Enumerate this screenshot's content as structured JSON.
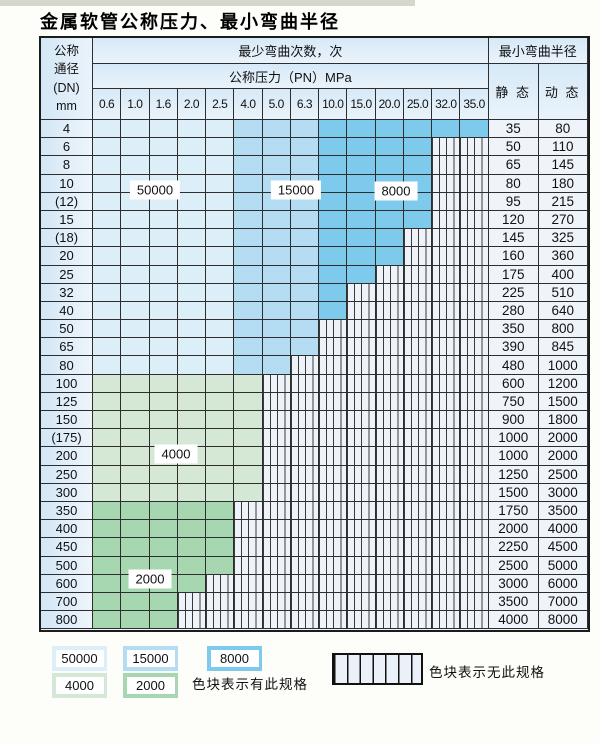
{
  "title": "金属软管公称压力、最小弯曲半径",
  "colors": {
    "c50000": "#dceff9",
    "c15000": "#b4ddf3",
    "c8000": "#7ecaec",
    "c4000": "#d4e8d5",
    "c2000": "#a7d7b0",
    "no_spec_bg": "#eef3f9",
    "header_bg": "#d7e9f7",
    "grid_line": "#2e2e2e"
  },
  "table": {
    "corner_header": [
      "公称",
      "通径",
      "(DN)",
      "mm"
    ],
    "bend_cycles_header": "最少弯曲次数，次",
    "pressure_header": "公称压力（PN）MPa",
    "min_radius_header": "最小弯曲半径",
    "static_header": "静 态",
    "dynamic_header": "动 态",
    "pressure_columns": [
      "0.6",
      "1.0",
      "1.6",
      "2.0",
      "2.5",
      "4.0",
      "5.0",
      "6.3",
      "10.0",
      "15.0",
      "20.0",
      "25.0",
      "32.0",
      "35.0"
    ],
    "rows": [
      {
        "dn": "4",
        "colored": 14,
        "band": "blue",
        "static": "35",
        "dynamic": "80"
      },
      {
        "dn": "6",
        "colored": 12,
        "band": "blue",
        "static": "50",
        "dynamic": "110"
      },
      {
        "dn": "8",
        "colored": 12,
        "band": "blue",
        "static": "65",
        "dynamic": "145"
      },
      {
        "dn": "10",
        "colored": 12,
        "band": "blue",
        "static": "80",
        "dynamic": "180"
      },
      {
        "dn": "(12)",
        "colored": 12,
        "band": "blue",
        "static": "95",
        "dynamic": "215"
      },
      {
        "dn": "15",
        "colored": 12,
        "band": "blue",
        "static": "120",
        "dynamic": "270"
      },
      {
        "dn": "(18)",
        "colored": 11,
        "band": "blue",
        "static": "145",
        "dynamic": "325"
      },
      {
        "dn": "20",
        "colored": 11,
        "band": "blue",
        "static": "160",
        "dynamic": "360"
      },
      {
        "dn": "25",
        "colored": 10,
        "band": "blue",
        "static": "175",
        "dynamic": "400"
      },
      {
        "dn": "32",
        "colored": 9,
        "band": "blue",
        "static": "225",
        "dynamic": "510"
      },
      {
        "dn": "40",
        "colored": 9,
        "band": "blue",
        "static": "280",
        "dynamic": "640"
      },
      {
        "dn": "50",
        "colored": 8,
        "band": "blue",
        "static": "350",
        "dynamic": "800"
      },
      {
        "dn": "65",
        "colored": 8,
        "band": "blue",
        "static": "390",
        "dynamic": "845"
      },
      {
        "dn": "80",
        "colored": 7,
        "band": "blue",
        "static": "480",
        "dynamic": "1000"
      },
      {
        "dn": "100",
        "colored": 6,
        "band": "4000",
        "static": "600",
        "dynamic": "1200"
      },
      {
        "dn": "125",
        "colored": 6,
        "band": "4000",
        "static": "750",
        "dynamic": "1500"
      },
      {
        "dn": "150",
        "colored": 6,
        "band": "4000",
        "static": "900",
        "dynamic": "1800"
      },
      {
        "dn": "(175)",
        "colored": 6,
        "band": "4000",
        "static": "1000",
        "dynamic": "2000"
      },
      {
        "dn": "200",
        "colored": 6,
        "band": "4000",
        "static": "1000",
        "dynamic": "2000"
      },
      {
        "dn": "250",
        "colored": 6,
        "band": "4000",
        "static": "1250",
        "dynamic": "2500"
      },
      {
        "dn": "300",
        "colored": 6,
        "band": "4000",
        "static": "1500",
        "dynamic": "3000"
      },
      {
        "dn": "350",
        "colored": 5,
        "band": "2000",
        "static": "1750",
        "dynamic": "3500"
      },
      {
        "dn": "400",
        "colored": 5,
        "band": "2000",
        "static": "2000",
        "dynamic": "4000"
      },
      {
        "dn": "450",
        "colored": 5,
        "band": "2000",
        "static": "2250",
        "dynamic": "4500"
      },
      {
        "dn": "500",
        "colored": 5,
        "band": "2000",
        "static": "2500",
        "dynamic": "5000"
      },
      {
        "dn": "600",
        "colored": 4,
        "band": "2000",
        "static": "3000",
        "dynamic": "6000"
      },
      {
        "dn": "700",
        "colored": 3,
        "band": "2000",
        "static": "3500",
        "dynamic": "7000"
      },
      {
        "dn": "800",
        "colored": 3,
        "band": "2000",
        "static": "4000",
        "dynamic": "8000"
      }
    ]
  },
  "overlay_labels": [
    {
      "value": "50000"
    },
    {
      "value": "15000"
    },
    {
      "value": "8000"
    },
    {
      "value": "4000"
    },
    {
      "value": "2000"
    }
  ],
  "legend": {
    "swatches": [
      {
        "label": "50000",
        "cycle": "50000"
      },
      {
        "label": "15000",
        "cycle": "15000"
      },
      {
        "label": "8000",
        "cycle": "8000"
      },
      {
        "label": "4000",
        "cycle": "4000"
      },
      {
        "label": "2000",
        "cycle": "2000"
      }
    ],
    "available_note": "色块表示有此规格",
    "unavailable_note": "色块表示无此规格"
  }
}
